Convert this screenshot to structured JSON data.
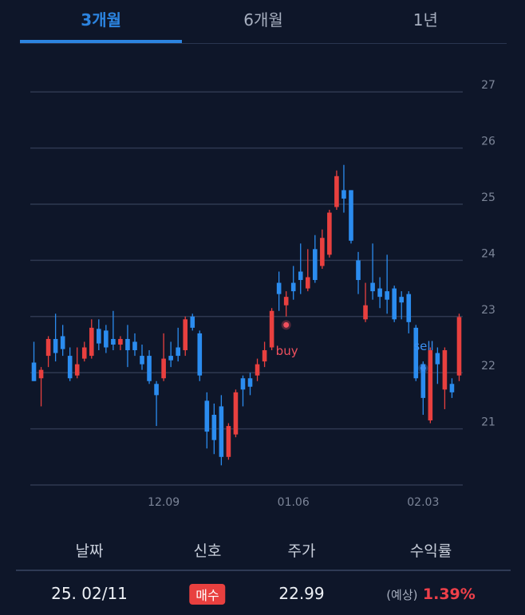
{
  "tabs": [
    "3개월",
    "6개월",
    "1년"
  ],
  "chart_data": {
    "type": "candlestick",
    "categories": [
      null,
      null,
      null,
      null,
      null,
      null,
      null,
      null,
      null,
      null,
      null,
      null,
      null,
      null,
      null,
      null,
      null,
      null,
      "12.09",
      null,
      null,
      null,
      null,
      null,
      null,
      null,
      null,
      null,
      null,
      null,
      null,
      null,
      null,
      null,
      null,
      null,
      "01.06",
      null,
      null,
      null,
      null,
      null,
      null,
      null,
      null,
      null,
      null,
      null,
      null,
      null,
      null,
      null,
      null,
      null,
      "02.03",
      null,
      null,
      null,
      null,
      null
    ],
    "open": [
      22.18,
      21.9,
      22.3,
      22.6,
      22.65,
      22.3,
      21.95,
      22.25,
      22.3,
      22.78,
      22.75,
      22.6,
      22.5,
      22.6,
      22.55,
      22.3,
      22.3,
      21.8,
      21.9,
      22.3,
      22.45,
      22.4,
      23.0,
      22.7,
      21.5,
      21.25,
      21.4,
      20.5,
      20.9,
      21.9,
      21.9,
      21.95,
      22.2,
      22.45,
      23.6,
      23.2,
      23.6,
      23.8,
      23.5,
      24.2,
      23.9,
      24.1,
      24.95,
      25.25,
      25.25,
      24.0,
      22.95,
      23.6,
      23.5,
      23.45,
      23.5,
      23.35,
      23.4,
      22.8,
      22.15,
      21.15,
      22.35,
      21.7,
      21.8,
      21.95
    ],
    "high": [
      22.55,
      22.1,
      22.65,
      23.05,
      22.85,
      22.45,
      22.45,
      22.55,
      22.95,
      22.95,
      22.85,
      23.1,
      22.65,
      22.85,
      22.7,
      22.5,
      22.4,
      21.85,
      22.7,
      22.55,
      22.8,
      23.0,
      23.05,
      22.75,
      21.65,
      21.45,
      21.6,
      21.1,
      21.7,
      21.95,
      22.0,
      22.25,
      22.55,
      23.15,
      23.8,
      23.45,
      23.9,
      24.3,
      24.2,
      24.45,
      24.55,
      24.9,
      25.6,
      25.7,
      25.25,
      24.15,
      23.6,
      24.3,
      23.7,
      24.1,
      23.55,
      23.45,
      23.45,
      22.85,
      22.2,
      22.45,
      22.45,
      22.45,
      21.9,
      23.05
    ],
    "low": [
      21.85,
      21.4,
      22.1,
      22.2,
      22.3,
      21.85,
      21.9,
      22.2,
      22.25,
      22.4,
      22.35,
      22.4,
      22.4,
      22.1,
      22.3,
      22.05,
      21.8,
      21.05,
      21.85,
      22.1,
      22.2,
      22.3,
      22.75,
      21.85,
      20.65,
      20.55,
      20.35,
      20.45,
      20.85,
      21.4,
      21.6,
      21.85,
      22.1,
      22.4,
      23.1,
      23.0,
      23.3,
      23.4,
      23.45,
      23.6,
      23.85,
      24.05,
      24.9,
      24.85,
      24.3,
      23.4,
      22.9,
      23.3,
      23.15,
      23.05,
      22.9,
      22.95,
      22.7,
      21.85,
      21.25,
      21.1,
      21.8,
      21.35,
      21.55,
      21.85
    ],
    "close": [
      21.85,
      22.05,
      22.6,
      22.35,
      22.42,
      21.9,
      22.15,
      22.45,
      22.8,
      22.52,
      22.45,
      22.5,
      22.6,
      22.4,
      22.4,
      22.15,
      21.85,
      21.6,
      22.25,
      22.22,
      22.3,
      22.95,
      22.8,
      21.95,
      20.95,
      20.8,
      20.5,
      21.05,
      21.65,
      21.7,
      21.75,
      22.15,
      22.4,
      23.1,
      23.4,
      23.35,
      23.45,
      23.65,
      23.7,
      23.65,
      24.4,
      24.85,
      25.5,
      25.1,
      24.35,
      23.65,
      23.2,
      23.45,
      23.35,
      23.3,
      22.95,
      23.25,
      22.9,
      21.9,
      21.55,
      22.4,
      22.15,
      22.4,
      21.65,
      22.99
    ],
    "up_color": "#e8403f",
    "down_color": "#2b8cef",
    "markers": [
      {
        "name": "buy",
        "color": "#f0505e",
        "values": [
          null,
          null,
          null,
          null,
          null,
          null,
          null,
          null,
          null,
          null,
          null,
          null,
          null,
          null,
          null,
          null,
          null,
          null,
          null,
          null,
          null,
          null,
          null,
          null,
          null,
          null,
          null,
          null,
          null,
          null,
          null,
          null,
          null,
          null,
          null,
          22.85,
          null,
          null,
          null,
          null,
          null,
          null,
          null,
          null,
          null,
          null,
          null,
          null,
          null,
          null,
          null,
          null,
          null,
          null,
          null,
          null,
          null,
          null,
          null,
          null
        ]
      },
      {
        "name": "sell",
        "color": "#3b8ff0",
        "values": [
          null,
          null,
          null,
          null,
          null,
          null,
          null,
          null,
          null,
          null,
          null,
          null,
          null,
          null,
          null,
          null,
          null,
          null,
          null,
          null,
          null,
          null,
          null,
          null,
          null,
          null,
          null,
          null,
          null,
          null,
          null,
          null,
          null,
          null,
          null,
          null,
          null,
          null,
          null,
          null,
          null,
          null,
          null,
          null,
          null,
          null,
          null,
          null,
          null,
          null,
          null,
          null,
          null,
          null,
          22.08,
          null,
          null,
          null,
          null,
          null
        ]
      }
    ],
    "ylim": [
      20,
      27.5
    ],
    "yticks": [
      21,
      22,
      23,
      24,
      25,
      26,
      27
    ],
    "grid": true
  },
  "table": {
    "headers": [
      "날짜",
      "신호",
      "주가",
      "수익률"
    ],
    "row": {
      "date": "25. 02/11",
      "signal": "매수",
      "price": "22.99",
      "note": "(예상)",
      "return": "1.39%"
    }
  }
}
